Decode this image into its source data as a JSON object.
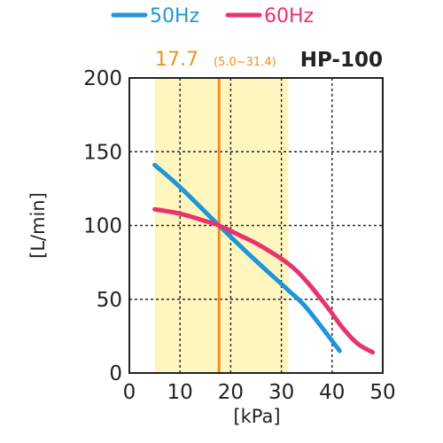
{
  "chart_data": {
    "type": "line",
    "model": "HP-100",
    "xlabel": "[kPa]",
    "ylabel": "[L/min]",
    "xlim": [
      0,
      50
    ],
    "ylim": [
      0,
      200
    ],
    "x_ticks": [
      "0",
      "10",
      "20",
      "30",
      "40",
      "50"
    ],
    "y_ticks": [
      "0",
      "50",
      "100",
      "150",
      "200"
    ],
    "grid": true,
    "legend_position": "top",
    "operating_point": {
      "value_label": "17.7",
      "range_label": "(5.0~31.4)",
      "value": 17.7,
      "range": [
        5.0,
        31.4
      ],
      "band_color": "#fff6bf",
      "line_color": "#f0901e"
    },
    "series": [
      {
        "name": "50Hz",
        "color": "#1e96d8",
        "points": [
          [
            5,
            141
          ],
          [
            10,
            126
          ],
          [
            17.7,
            100
          ],
          [
            25,
            76
          ],
          [
            31.4,
            56
          ],
          [
            35,
            44
          ],
          [
            41.5,
            15
          ]
        ]
      },
      {
        "name": "60Hz",
        "color": "#e8336d",
        "points": [
          [
            5,
            111
          ],
          [
            10,
            108
          ],
          [
            15,
            103
          ],
          [
            17.7,
            100
          ],
          [
            22,
            93
          ],
          [
            26,
            86
          ],
          [
            31.4,
            74
          ],
          [
            35,
            62
          ],
          [
            39,
            45
          ],
          [
            42,
            31
          ],
          [
            45,
            20
          ],
          [
            48,
            14
          ]
        ]
      }
    ]
  }
}
